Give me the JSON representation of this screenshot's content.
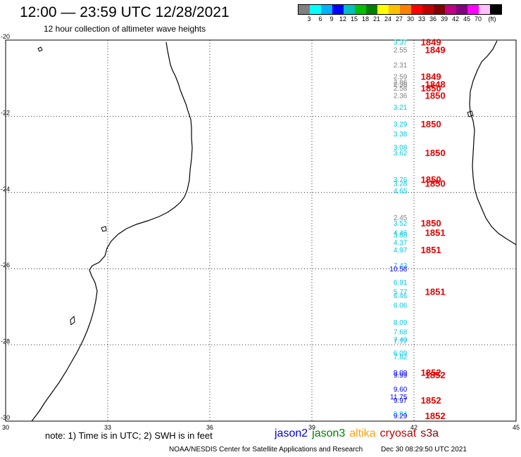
{
  "header": {
    "title": "12:00 — 23:59 UTC 12/28/2021",
    "subtitle": "12 hour collection of altimeter wave heights"
  },
  "colorbar": {
    "colors": [
      "#808080",
      "#00ffff",
      "#00b0ff",
      "#0000ff",
      "#00c0c0",
      "#00c000",
      "#008000",
      "#ffff00",
      "#ffc000",
      "#ff8000",
      "#ff0000",
      "#c00000",
      "#800000",
      "#c00080",
      "#800080",
      "#ff00ff",
      "#ffc0ff",
      "#000000"
    ],
    "labels": [
      "3",
      "6",
      "9",
      "12",
      "15",
      "18",
      "21",
      "24",
      "27",
      "30",
      "33",
      "36",
      "39",
      "42",
      "45",
      "70",
      "(ft)"
    ]
  },
  "map": {
    "lat_ticks": [
      "-20",
      "-22",
      "-24",
      "-26",
      "-28",
      "-30"
    ],
    "lon_ticks": [
      "30",
      "33",
      "36",
      "39",
      "42",
      "45"
    ],
    "swh_readings": [
      {
        "text": "3.37",
        "lat": -20.05,
        "color": "#00c8e0"
      },
      {
        "text": "2.55",
        "lat": -20.25,
        "color": "#808080"
      },
      {
        "text": "2.31",
        "lat": -20.65,
        "color": "#808080"
      },
      {
        "text": "2.59",
        "lat": -20.95,
        "color": "#808080"
      },
      {
        "text": "2.86",
        "lat": -21.1,
        "color": "#808080"
      },
      {
        "text": "2.36",
        "lat": -21.15,
        "color": "#808080"
      },
      {
        "text": "2.58",
        "lat": -21.25,
        "color": "#808080"
      },
      {
        "text": "2.36",
        "lat": -21.45,
        "color": "#808080"
      },
      {
        "text": "3.21",
        "lat": -21.75,
        "color": "#00c8e0"
      },
      {
        "text": "3.29",
        "lat": -22.2,
        "color": "#00c8e0"
      },
      {
        "text": "3.38",
        "lat": -22.45,
        "color": "#00c8e0"
      },
      {
        "text": "3.08",
        "lat": -22.8,
        "color": "#00c8e0"
      },
      {
        "text": "3.62",
        "lat": -22.95,
        "color": "#00c8e0"
      },
      {
        "text": "3.76",
        "lat": -23.65,
        "color": "#00c8e0"
      },
      {
        "text": "3.28",
        "lat": -23.75,
        "color": "#00c8e0"
      },
      {
        "text": "4.65",
        "lat": -23.95,
        "color": "#00c8e0"
      },
      {
        "text": "2.45",
        "lat": -24.65,
        "color": "#808080"
      },
      {
        "text": "3.52",
        "lat": -24.8,
        "color": "#00c8e0"
      },
      {
        "text": "4.46",
        "lat": -25.05,
        "color": "#00c8e0"
      },
      {
        "text": "3.88",
        "lat": -25.1,
        "color": "#00c8e0"
      },
      {
        "text": "4.37",
        "lat": -25.3,
        "color": "#00c8e0"
      },
      {
        "text": "4.97",
        "lat": -25.5,
        "color": "#00c8e0"
      },
      {
        "text": "7.43",
        "lat": -25.9,
        "color": "#00c8e0"
      },
      {
        "text": "10.58",
        "lat": -26.0,
        "color": "#0000ff"
      },
      {
        "text": "6.91",
        "lat": -26.35,
        "color": "#00c8e0"
      },
      {
        "text": "5.77",
        "lat": -26.6,
        "color": "#00c8e0"
      },
      {
        "text": "6.46",
        "lat": -26.7,
        "color": "#00c8e0"
      },
      {
        "text": "6.06",
        "lat": -26.95,
        "color": "#00c8e0"
      },
      {
        "text": "8.09",
        "lat": -27.4,
        "color": "#00c8e0"
      },
      {
        "text": "7.68",
        "lat": -27.65,
        "color": "#00c8e0"
      },
      {
        "text": "7.40",
        "lat": -27.85,
        "color": "#00c8e0"
      },
      {
        "text": "7.77",
        "lat": -27.9,
        "color": "#00c8e0"
      },
      {
        "text": "6.09",
        "lat": -28.2,
        "color": "#00c8e0"
      },
      {
        "text": "7.82",
        "lat": -28.3,
        "color": "#00c8e0"
      },
      {
        "text": "9.09",
        "lat": -28.72,
        "color": "#0000ff"
      },
      {
        "text": "9.99",
        "lat": -28.78,
        "color": "#0000ff"
      },
      {
        "text": "9.60",
        "lat": -29.15,
        "color": "#0000ff"
      },
      {
        "text": "11.75",
        "lat": -29.35,
        "color": "#0000ff"
      },
      {
        "text": "9.97",
        "lat": -29.45,
        "color": "#0000ff"
      },
      {
        "text": "8.84",
        "lat": -29.8,
        "color": "#00c8e0"
      },
      {
        "text": "9.29",
        "lat": -29.85,
        "color": "#0000ff"
      }
    ],
    "cycle_labels": [
      {
        "text": "1849",
        "lat": -20.05
      },
      {
        "text": "1849",
        "lat": -20.25
      },
      {
        "text": "1849",
        "lat": -20.95
      },
      {
        "text": "1848",
        "lat": -21.15
      },
      {
        "text": "1850",
        "lat": -21.25
      },
      {
        "text": "1850",
        "lat": -21.45
      },
      {
        "text": "1850",
        "lat": -22.2
      },
      {
        "text": "1850",
        "lat": -22.95
      },
      {
        "text": "1850",
        "lat": -23.65
      },
      {
        "text": "1850",
        "lat": -23.75
      },
      {
        "text": "1850",
        "lat": -24.8
      },
      {
        "text": "1851",
        "lat": -25.05
      },
      {
        "text": "1851",
        "lat": -25.5
      },
      {
        "text": "1851",
        "lat": -26.6
      },
      {
        "text": "1852",
        "lat": -28.72
      },
      {
        "text": "1852",
        "lat": -28.78
      },
      {
        "text": "1852",
        "lat": -29.45
      },
      {
        "text": "1852",
        "lat": -29.85
      }
    ]
  },
  "footer": {
    "note": "note: 1) Time is in UTC; 2) SWH is in feet",
    "legend": [
      {
        "label": "jason2",
        "color": "#0000e0"
      },
      {
        "label": "jason3",
        "color": "#008000"
      },
      {
        "label": "altika",
        "color": "#ffa000"
      },
      {
        "label": "cryosat",
        "color": "#c00000"
      },
      {
        "label": "s3a",
        "color": "#8b0000"
      }
    ],
    "credit": "NOAA/NESDIS Center for Satellite Applications and Research",
    "timestamp": "Dec 30 08:29:50 UTC 2021"
  }
}
